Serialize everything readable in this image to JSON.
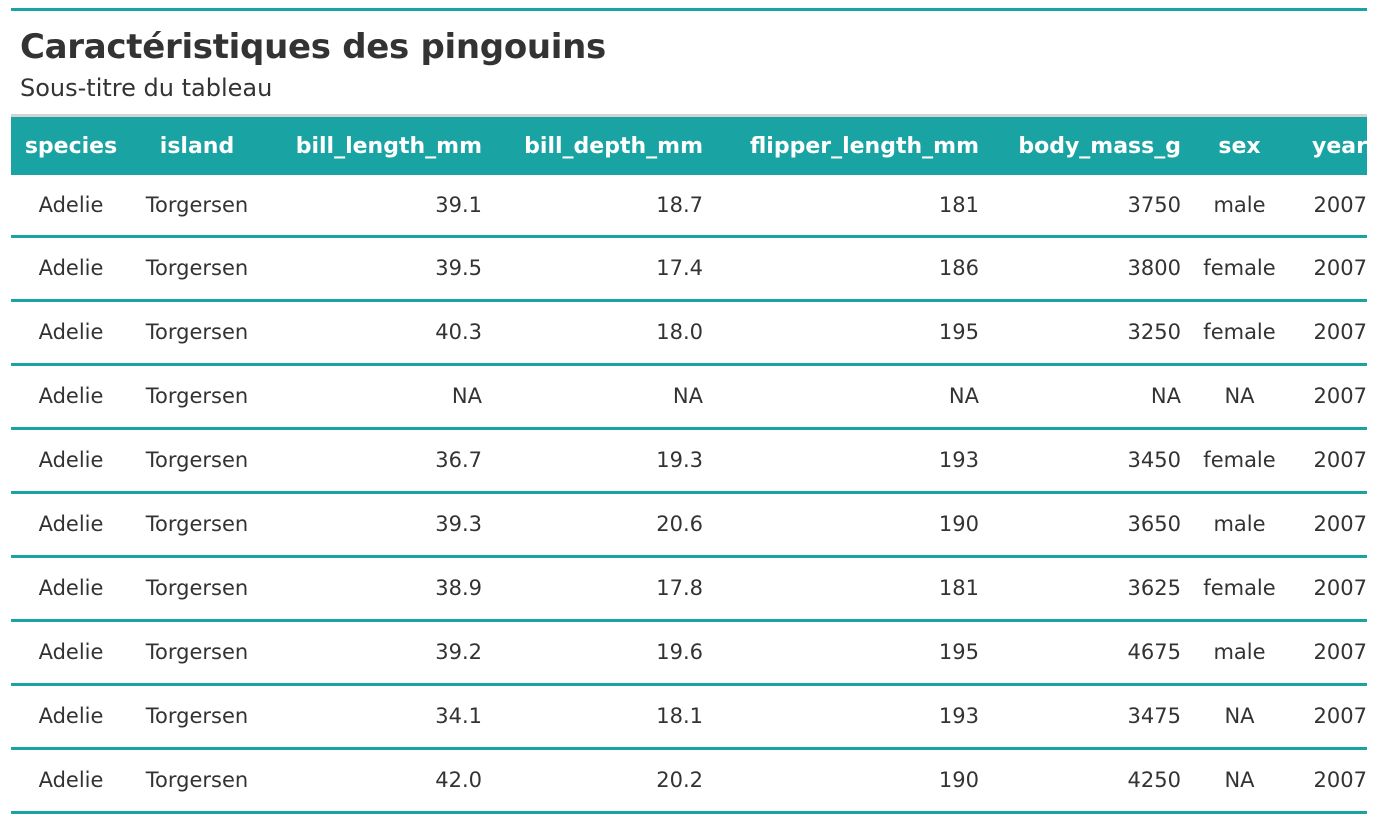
{
  "table": {
    "title": "Caractéristiques des pingouins",
    "subtitle": "Sous-titre du tableau",
    "columns": [
      "species",
      "island",
      "bill_length_mm",
      "bill_depth_mm",
      "flipper_length_mm",
      "body_mass_g",
      "sex",
      "year"
    ],
    "rows": [
      [
        "Adelie",
        "Torgersen",
        "39.1",
        "18.7",
        "181",
        "3750",
        "male",
        "2007"
      ],
      [
        "Adelie",
        "Torgersen",
        "39.5",
        "17.4",
        "186",
        "3800",
        "female",
        "2007"
      ],
      [
        "Adelie",
        "Torgersen",
        "40.3",
        "18.0",
        "195",
        "3250",
        "female",
        "2007"
      ],
      [
        "Adelie",
        "Torgersen",
        "NA",
        "NA",
        "NA",
        "NA",
        "NA",
        "2007"
      ],
      [
        "Adelie",
        "Torgersen",
        "36.7",
        "19.3",
        "193",
        "3450",
        "female",
        "2007"
      ],
      [
        "Adelie",
        "Torgersen",
        "39.3",
        "20.6",
        "190",
        "3650",
        "male",
        "2007"
      ],
      [
        "Adelie",
        "Torgersen",
        "38.9",
        "17.8",
        "181",
        "3625",
        "female",
        "2007"
      ],
      [
        "Adelie",
        "Torgersen",
        "39.2",
        "19.6",
        "195",
        "4675",
        "male",
        "2007"
      ],
      [
        "Adelie",
        "Torgersen",
        "34.1",
        "18.1",
        "193",
        "3475",
        "NA",
        "2007"
      ],
      [
        "Adelie",
        "Torgersen",
        "42.0",
        "20.2",
        "190",
        "4250",
        "NA",
        "2007"
      ]
    ]
  },
  "colors": {
    "accent": "#1aa3a3",
    "subtitle_rule": "#d3d3d3",
    "text": "#333333"
  }
}
